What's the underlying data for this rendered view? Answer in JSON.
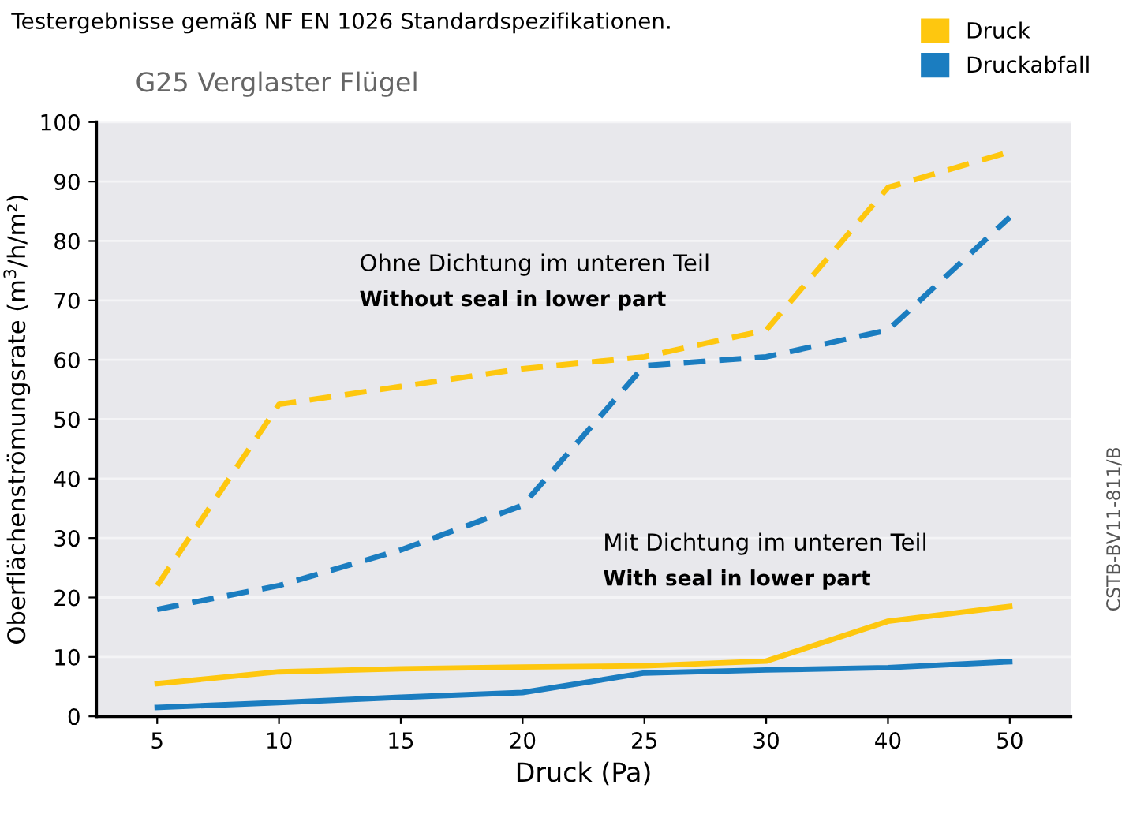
{
  "chart_data": {
    "type": "line",
    "title": "G25 Verglaster Flügel",
    "subtitle": "Testergebnisse gemäß NF EN 1026 Standardspezifikationen.",
    "xlabel": "Druck (Pa)",
    "ylabel": "Oberflächenströmungsrate (m$^{3}$/h/m²)",
    "categories": [
      "5",
      "10",
      "15",
      "20",
      "25",
      "30",
      "40",
      "50"
    ],
    "series": [
      {
        "name": "Druck",
        "color": "#fec70f",
        "line_style": "dashed",
        "values": [
          22,
          52.5,
          55.5,
          58.5,
          60.5,
          65,
          89,
          95
        ]
      },
      {
        "name": "Druckabfall",
        "color": "#1b7dc0",
        "line_style": "dashed",
        "values": [
          18,
          22,
          28,
          35.5,
          59,
          60.5,
          65,
          84
        ]
      },
      {
        "color": "#fec70f",
        "line_style": "solid",
        "values": [
          5.5,
          7.5,
          8,
          8.3,
          8.5,
          9.3,
          16,
          18.5
        ]
      },
      {
        "color": "#1b7dc0",
        "line_style": "solid",
        "values": [
          1.5,
          2.3,
          3.2,
          4,
          7.3,
          7.8,
          8.2,
          9.2
        ]
      }
    ],
    "ylim": [
      0,
      100
    ],
    "yticks": [
      0,
      10,
      20,
      30,
      40,
      50,
      60,
      70,
      80,
      90,
      100
    ],
    "grid": "y",
    "legend": "top right",
    "marker": "none",
    "annotations": [
      "Ohne Dichtung im unteren Teil",
      "Without seal in lower part",
      "Mit Dichtung im unteren Teil",
      "With seal in lower part",
      "CSTB-BV11-811/B"
    ]
  }
}
